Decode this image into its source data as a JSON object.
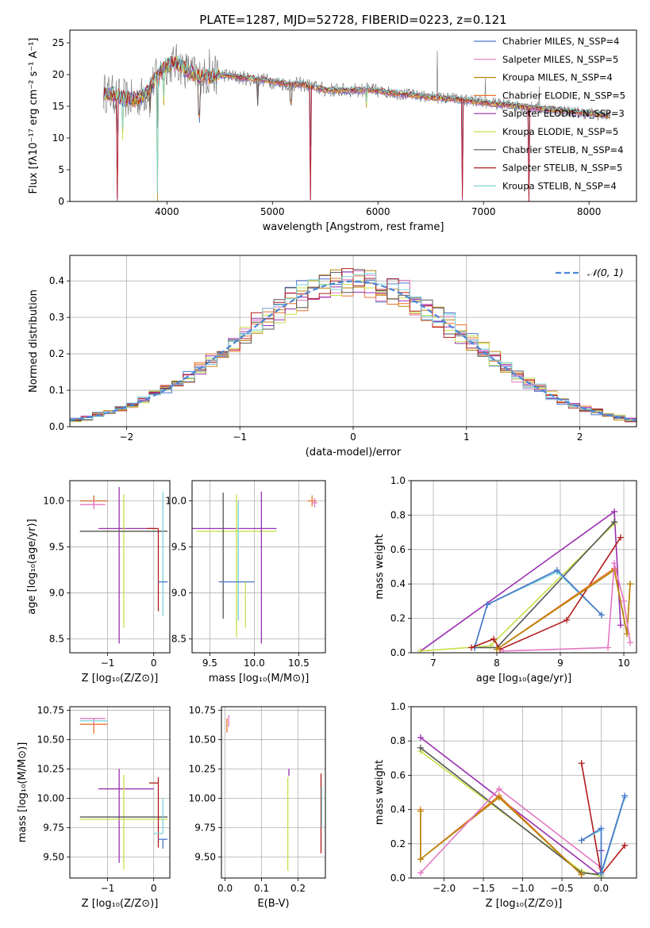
{
  "figure_title": "PLATE=1287, MJD=52728, FIBERID=0223, z=0.121",
  "colors": {
    "chabrier_miles": "#4a74c9",
    "salpeter_miles": "#e377c2",
    "kroupa_miles": "#b8860b",
    "chabrier_elodie": "#e8742b",
    "salpeter_elodie": "#9a2fb0",
    "kroupa_elodie": "#c7e04a",
    "chabrier_stelib": "#555555",
    "salpeter_stelib": "#b01c1c",
    "kroupa_stelib": "#7ad3d8",
    "normal_curve": "#4a86d6",
    "grid": "#b0b0b0"
  },
  "chart_data": [
    {
      "id": "spectrum",
      "type": "line",
      "xlabel": "wavelength [Angstrom, rest frame]",
      "ylabel": "Flux [fλ10⁻¹⁷ erg cm⁻² s⁻¹ A⁻¹]",
      "xlim": [
        3080,
        8450
      ],
      "ylim": [
        0,
        27
      ],
      "xticks": [
        4000,
        5000,
        6000,
        7000,
        8000
      ],
      "yticks": [
        0,
        5,
        10,
        15,
        20,
        25
      ],
      "grid": false,
      "legend_position": "upper-right",
      "legend": [
        "Chabrier MILES, N_SSP=4",
        "Salpeter MILES, N_SSP=5",
        "Kroupa MILES, N_SSP=4",
        "Chabrier ELODIE, N_SSP=5",
        "Salpeter ELODIE, N_SSP=3",
        "Kroupa ELODIE, N_SSP=5",
        "Chabrier STELIB, N_SSP=4",
        "Salpeter STELIB, N_SSP=5",
        "Kroupa STELIB, N_SSP=4"
      ],
      "continuum": {
        "x": [
          3400,
          3500,
          3600,
          3700,
          3800,
          3900,
          4000,
          4100,
          4200,
          4300,
          4400,
          4500,
          4700,
          4900,
          5100,
          5300,
          5500,
          5700,
          5900,
          6100,
          6300,
          6500,
          6700,
          6900,
          7100,
          7300,
          7500,
          7700,
          7900,
          8100,
          8200
        ],
        "y": [
          17.2,
          16.8,
          16.2,
          16.0,
          17.0,
          19.5,
          21.5,
          21.8,
          20.5,
          19.8,
          19.6,
          20.0,
          19.5,
          19.2,
          18.6,
          18.4,
          17.6,
          17.5,
          17.6,
          17.2,
          16.8,
          16.4,
          16.2,
          15.8,
          15.4,
          15.1,
          14.7,
          14.4,
          14.0,
          13.7,
          13.5
        ]
      },
      "absorption_lines": [
        {
          "x": 3530,
          "depth": 17.0
        },
        {
          "x": 3580,
          "depth": 6.0
        },
        {
          "x": 3840,
          "depth": 4.0
        },
        {
          "x": 3910,
          "depth": 19.0
        },
        {
          "x": 3970,
          "depth": 5.0
        },
        {
          "x": 4305,
          "depth": 6.0
        },
        {
          "x": 4860,
          "depth": 4.0
        },
        {
          "x": 5175,
          "depth": 3.0
        },
        {
          "x": 5360,
          "depth": 18.0
        },
        {
          "x": 5890,
          "depth": 2.5
        },
        {
          "x": 6800,
          "depth": 16.0
        },
        {
          "x": 7430,
          "depth": 15.0
        }
      ],
      "emission_spikes": [
        {
          "x": 4400,
          "height": 6.0
        },
        {
          "x": 6560,
          "height": 8.0
        },
        {
          "x": 7020,
          "height": 4.0
        },
        {
          "x": 7530,
          "height": 3.0
        }
      ]
    },
    {
      "id": "residual_histogram",
      "type": "line",
      "xlabel": "(data-model)/error",
      "ylabel": "Normed distribution",
      "xlim": [
        -2.5,
        2.5
      ],
      "ylim": [
        0,
        0.47
      ],
      "xticks": [
        -2,
        -1,
        0,
        1,
        2
      ],
      "yticks": [
        0.0,
        0.1,
        0.2,
        0.3,
        0.4
      ],
      "grid": true,
      "legend_position": "upper-right",
      "legend": [
        "𝒩(0, 1)"
      ],
      "normal": {
        "mu": 0,
        "sigma": 1
      },
      "bin_width": 0.1
    },
    {
      "id": "age_vs_z",
      "type": "scatter",
      "xlabel": "Z [log₁₀(Z/Z⊙)]",
      "ylabel": "age  [log₁₀(age/yr)]",
      "xlim": [
        -1.82,
        0.35
      ],
      "ylim": [
        8.35,
        10.22
      ],
      "xticks": [
        -1,
        0
      ],
      "yticks": [
        8.5,
        9.0,
        9.5,
        10.0
      ],
      "grid": true,
      "crosses": [
        {
          "c": "chabrier_miles",
          "x": -1.3,
          "xerr": [
            0.3,
            0.3
          ],
          "y": 10.0,
          "yerr": [
            0.05,
            0.05
          ]
        },
        {
          "c": "chabrier_elodie",
          "x": -1.3,
          "xerr": [
            0.3,
            0.3
          ],
          "y": 10.0,
          "yerr": [
            0.06,
            0.06
          ]
        },
        {
          "c": "salpeter_miles",
          "x": -1.3,
          "xerr": [
            0.3,
            0.25
          ],
          "y": 9.96,
          "yerr": [
            0.05,
            0.05
          ]
        },
        {
          "c": "salpeter_elodie",
          "x": -0.75,
          "xerr": [
            0.0,
            0.0
          ],
          "y": 9.7,
          "yerr": [
            1.25,
            0.45
          ]
        },
        {
          "c": "salpeter_elodie",
          "x": -0.4,
          "xerr": [
            0.8,
            0.4
          ],
          "y": 9.7,
          "yerr": [
            0.0,
            0.0
          ]
        },
        {
          "c": "kroupa_elodie",
          "x": -0.65,
          "xerr": [
            0.95,
            0.95
          ],
          "y": 9.67,
          "yerr": [
            1.05,
            0.4
          ]
        },
        {
          "c": "chabrier_stelib",
          "x": -0.65,
          "xerr": [
            0.95,
            0.95
          ],
          "y": 9.67,
          "yerr": [
            0.0,
            0.0
          ]
        },
        {
          "c": "salpeter_stelib",
          "x": 0.1,
          "xerr": [
            0.0,
            0.0
          ],
          "y": 9.7,
          "yerr": [
            0.9,
            0.0
          ]
        },
        {
          "c": "salpeter_stelib",
          "x": 0.1,
          "xerr": [
            0.25,
            0.0
          ],
          "y": 9.7,
          "yerr": [
            0.0,
            0.0
          ]
        },
        {
          "c": "kroupa_stelib",
          "x": 0.2,
          "xerr": [
            0.0,
            0.0
          ],
          "y": 9.4,
          "yerr": [
            0.65,
            0.7
          ]
        },
        {
          "c": "chabrier_miles",
          "x": 0.2,
          "xerr": [
            0.1,
            0.1
          ],
          "y": 9.12,
          "yerr": [
            0.0,
            0.0
          ]
        }
      ]
    },
    {
      "id": "age_vs_mass",
      "type": "scatter",
      "xlabel": "mass [log₁₀(M/M⊙)]",
      "ylabel": "",
      "xlim": [
        9.3,
        10.8
      ],
      "ylim": [
        8.35,
        10.22
      ],
      "xticks": [
        9.5,
        10.0,
        10.5
      ],
      "yticks": [
        8.5,
        9.0,
        9.5,
        10.0
      ],
      "grid": true,
      "crosses": [
        {
          "c": "salpeter_elodie",
          "x": 9.75,
          "xerr": [
            0.45,
            0.5
          ],
          "y": 9.7,
          "yerr": [
            0.0,
            0.0
          ]
        },
        {
          "c": "kroupa_elodie",
          "x": 9.8,
          "xerr": [
            0.45,
            0.45
          ],
          "y": 9.67,
          "yerr": [
            1.15,
            0.4
          ]
        },
        {
          "c": "chabrier_stelib",
          "x": 9.65,
          "xerr": [
            0.0,
            0.0
          ],
          "y": 9.67,
          "yerr": [
            0.95,
            0.42
          ]
        },
        {
          "c": "kroupa_stelib",
          "x": 9.82,
          "xerr": [
            0.0,
            0.0
          ],
          "y": 9.5,
          "yerr": [
            0.8,
            0.5
          ]
        },
        {
          "c": "salpeter_elodie",
          "x": 10.08,
          "xerr": [
            0.0,
            0.0
          ],
          "y": 9.4,
          "yerr": [
            0.95,
            0.7
          ]
        },
        {
          "c": "chabrier_miles",
          "x": 9.8,
          "xerr": [
            0.2,
            0.2
          ],
          "y": 9.12,
          "yerr": [
            0.0,
            0.0
          ]
        },
        {
          "c": "kroupa_elodie",
          "x": 9.9,
          "xerr": [
            0.0,
            0.0
          ],
          "y": 9.12,
          "yerr": [
            0.5,
            0.0
          ]
        },
        {
          "c": "chabrier_elodie",
          "x": 10.65,
          "xerr": [
            0.05,
            0.05
          ],
          "y": 10.0,
          "yerr": [
            0.06,
            0.06
          ]
        },
        {
          "c": "salpeter_miles",
          "x": 10.68,
          "xerr": [
            0.03,
            0.03
          ],
          "y": 9.98,
          "yerr": [
            0.05,
            0.05
          ]
        }
      ]
    },
    {
      "id": "massweight_vs_age",
      "type": "line",
      "xlabel": "age  [log₁₀(age/yr)]",
      "ylabel": "mass weight",
      "xlim": [
        6.65,
        10.2
      ],
      "ylim": [
        0,
        1.0
      ],
      "xticks": [
        7,
        8,
        9,
        10
      ],
      "yticks": [
        0.0,
        0.2,
        0.4,
        0.6,
        0.8,
        1.0
      ],
      "grid": true,
      "series": [
        {
          "c": "salpeter_elodie",
          "x": [
            6.8,
            9.85,
            9.95
          ],
          "y": [
            0.01,
            0.82,
            0.16
          ]
        },
        {
          "c": "kroupa_elodie",
          "x": [
            6.8,
            7.9,
            9.85
          ],
          "y": [
            0.01,
            0.04,
            0.75
          ]
        },
        {
          "c": "chabrier_stelib",
          "x": [
            7.65,
            8.0,
            9.85
          ],
          "y": [
            0.03,
            0.03,
            0.76
          ]
        },
        {
          "c": "kroupa_stelib",
          "x": [
            7.65,
            7.85,
            8.95,
            9.65
          ],
          "y": [
            0.03,
            0.28,
            0.47,
            0.22
          ]
        },
        {
          "c": "chabrier_miles",
          "x": [
            7.65,
            7.85,
            8.95,
            9.65
          ],
          "y": [
            0.03,
            0.28,
            0.48,
            0.22
          ]
        },
        {
          "c": "salpeter_stelib",
          "x": [
            7.6,
            7.95,
            8.05,
            9.1,
            9.95
          ],
          "y": [
            0.03,
            0.08,
            0.02,
            0.19,
            0.67
          ]
        },
        {
          "c": "chabrier_elodie",
          "x": [
            8.0,
            9.85,
            10.05,
            10.1
          ],
          "y": [
            0.02,
            0.49,
            0.11,
            0.4
          ]
        },
        {
          "c": "kroupa_miles",
          "x": [
            8.0,
            9.85,
            10.05,
            10.1
          ],
          "y": [
            0.02,
            0.48,
            0.11,
            0.4
          ]
        },
        {
          "c": "salpeter_miles",
          "x": [
            8.1,
            9.75,
            9.85,
            10.0,
            10.1
          ],
          "y": [
            0.01,
            0.03,
            0.52,
            0.3,
            0.06
          ]
        }
      ]
    },
    {
      "id": "mass_vs_z",
      "type": "scatter",
      "xlabel": "Z [log₁₀(Z/Z⊙)]",
      "ylabel": "mass [log₁₀(M/M⊙)]",
      "xlim": [
        -1.82,
        0.35
      ],
      "ylim": [
        9.32,
        10.78
      ],
      "xticks": [
        -1,
        0
      ],
      "yticks": [
        9.5,
        9.75,
        10.0,
        10.25,
        10.5,
        10.75
      ],
      "grid": true,
      "crosses": [
        {
          "c": "chabrier_elodie",
          "x": -1.3,
          "xerr": [
            0.3,
            0.3
          ],
          "y": 10.63,
          "yerr": [
            0.08,
            0.05
          ]
        },
        {
          "c": "salpeter_miles",
          "x": -1.3,
          "xerr": [
            0.3,
            0.25
          ],
          "y": 10.68,
          "yerr": [
            0.05,
            0.0
          ]
        },
        {
          "c": "kroupa_stelib",
          "x": -1.3,
          "xerr": [
            0.3,
            0.3
          ],
          "y": 10.66,
          "yerr": [
            0.0,
            0.0
          ]
        },
        {
          "c": "salpeter_elodie",
          "x": -0.75,
          "xerr": [
            0.0,
            0.0
          ],
          "y": 9.85,
          "yerr": [
            0.4,
            0.4
          ]
        },
        {
          "c": "salpeter_elodie",
          "x": -0.4,
          "xerr": [
            0.8,
            0.4
          ],
          "y": 10.08,
          "yerr": [
            0.0,
            0.0
          ]
        },
        {
          "c": "kroupa_elodie",
          "x": -0.65,
          "xerr": [
            0.95,
            0.95
          ],
          "y": 9.82,
          "yerr": [
            0.43,
            0.38
          ]
        },
        {
          "c": "chabrier_stelib",
          "x": -0.65,
          "xerr": [
            0.95,
            0.95
          ],
          "y": 9.84,
          "yerr": [
            0.0,
            0.0
          ]
        },
        {
          "c": "salpeter_stelib",
          "x": 0.1,
          "xerr": [
            0.2,
            0.0
          ],
          "y": 10.13,
          "yerr": [
            0.55,
            0.05
          ]
        },
        {
          "c": "kroupa_stelib",
          "x": 0.2,
          "xerr": [
            0.2,
            0.0
          ],
          "y": 9.7,
          "yerr": [
            0.0,
            0.3
          ]
        },
        {
          "c": "chabrier_miles",
          "x": 0.2,
          "xerr": [
            0.1,
            0.1
          ],
          "y": 9.65,
          "yerr": [
            0.08,
            0.0
          ]
        }
      ]
    },
    {
      "id": "mass_vs_ebv",
      "type": "scatter",
      "xlabel": "E(B-V)",
      "ylabel": "",
      "xlim": [
        -0.01,
        0.275
      ],
      "ylim": [
        9.32,
        10.78
      ],
      "xticks": [
        0.0,
        0.1,
        0.2
      ],
      "yticks": [
        9.5,
        9.75,
        10.0,
        10.25,
        10.5,
        10.75
      ],
      "grid": true,
      "crosses": [
        {
          "c": "salpeter_miles",
          "x": 0.01,
          "xerr": [
            0.0,
            0.0
          ],
          "y": 10.66,
          "yerr": [
            0.05,
            0.05
          ]
        },
        {
          "c": "chabrier_elodie",
          "x": 0.005,
          "xerr": [
            0.0,
            0.0
          ],
          "y": 10.62,
          "yerr": [
            0.06,
            0.06
          ]
        },
        {
          "c": "salpeter_elodie",
          "x": 0.175,
          "xerr": [
            0.0,
            0.0
          ],
          "y": 10.22,
          "yerr": [
            0.03,
            0.03
          ]
        },
        {
          "c": "kroupa_elodie",
          "x": 0.172,
          "xerr": [
            0.0,
            0.0
          ],
          "y": 9.8,
          "yerr": [
            0.42,
            0.38
          ]
        },
        {
          "c": "salpeter_stelib",
          "x": 0.263,
          "xerr": [
            0.0,
            0.0
          ],
          "y": 10.13,
          "yerr": [
            0.6,
            0.08
          ]
        },
        {
          "c": "kroupa_stelib",
          "x": 0.265,
          "xerr": [
            0.0,
            0.0
          ],
          "y": 9.75,
          "yerr": [
            0.0,
            0.35
          ]
        },
        {
          "c": "chabrier_stelib",
          "x": 0.262,
          "xerr": [
            0.0,
            0.0
          ],
          "y": 9.6,
          "yerr": [
            0.0,
            0.0
          ]
        }
      ]
    },
    {
      "id": "massweight_vs_z",
      "type": "line",
      "xlabel": "Z [log₁₀(Z/Z⊙)]",
      "ylabel": "mass weight",
      "xlim": [
        -2.42,
        0.45
      ],
      "ylim": [
        0,
        1.0
      ],
      "xticks": [
        -2.0,
        -1.5,
        -1.0,
        -0.5,
        0.0
      ],
      "yticks": [
        0.0,
        0.2,
        0.4,
        0.6,
        0.8,
        1.0
      ],
      "grid": true,
      "series": [
        {
          "c": "salpeter_elodie",
          "x": [
            -2.3,
            0.0,
            0.0
          ],
          "y": [
            0.82,
            0.01,
            0.16
          ]
        },
        {
          "c": "kroupa_elodie",
          "x": [
            -2.3,
            -0.25,
            0.0
          ],
          "y": [
            0.74,
            0.04,
            0.01
          ]
        },
        {
          "c": "chabrier_stelib",
          "x": [
            -2.3,
            -0.25,
            0.0
          ],
          "y": [
            0.76,
            0.03,
            0.02
          ]
        },
        {
          "c": "chabrier_elodie",
          "x": [
            -2.3,
            -2.3,
            -1.3,
            -0.25
          ],
          "y": [
            0.4,
            0.11,
            0.48,
            0.02
          ]
        },
        {
          "c": "kroupa_miles",
          "x": [
            -2.3,
            -2.3,
            -1.3,
            -0.25
          ],
          "y": [
            0.39,
            0.11,
            0.47,
            0.02
          ]
        },
        {
          "c": "salpeter_miles",
          "x": [
            -2.3,
            -1.3,
            0.0
          ],
          "y": [
            0.03,
            0.52,
            0.06
          ]
        },
        {
          "c": "salpeter_stelib",
          "x": [
            -0.25,
            0.0,
            0.3
          ],
          "y": [
            0.67,
            0.02,
            0.19
          ]
        },
        {
          "c": "kroupa_stelib",
          "x": [
            -0.25,
            0.0,
            0.0,
            0.3
          ],
          "y": [
            0.22,
            0.28,
            0.02,
            0.47
          ]
        },
        {
          "c": "chabrier_miles",
          "x": [
            -0.25,
            0.0,
            0.0,
            0.3
          ],
          "y": [
            0.22,
            0.29,
            0.03,
            0.48
          ]
        }
      ]
    }
  ]
}
